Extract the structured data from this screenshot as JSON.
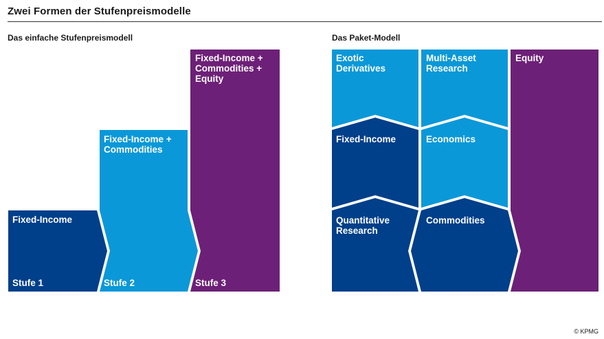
{
  "title": "Zwei Formen der Stufenpreismodelle",
  "left_heading": "Das einfache Stufenpreismodell",
  "right_heading": "Das Paket-Modell",
  "colors": {
    "dark_blue": "#003f8a",
    "light_blue": "#0b98d8",
    "purple": "#6d2077"
  },
  "simple_model": {
    "stufe1_label": "Fixed-Income",
    "stufe1_name": "Stufe 1",
    "stufe2_label": "Fixed-Income +\nCommodities",
    "stufe2_name": "Stufe 2",
    "stufe3_label": "Fixed-Income +\nCommodities +\nEquity",
    "stufe3_name": "Stufe 3"
  },
  "package_model": {
    "exotic": "Exotic\nDerivatives",
    "multi_asset": "Multi-Asset\nResearch",
    "equity": "Equity",
    "fixed_income": "Fixed-Income",
    "economics": "Economics",
    "quantitative": "Quantitative\nResearch",
    "commodities": "Commodities"
  },
  "copyright": "© KPMG"
}
